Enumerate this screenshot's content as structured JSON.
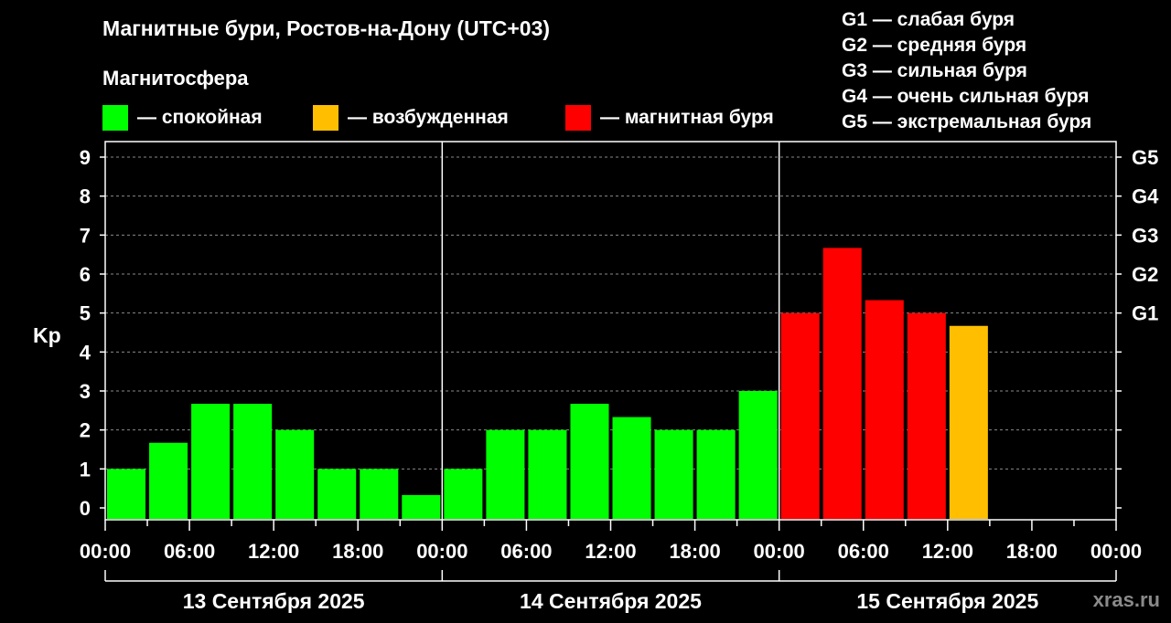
{
  "title": "Магнитные бури, Ростов-на-Дону (UTC+03)",
  "subtitle": "Магнитосфера",
  "legend": [
    {
      "label": "— спокойная",
      "color": "#00ff00"
    },
    {
      "label": "— возбужденная",
      "color": "#ffbf00"
    },
    {
      "label": "— магнитная буря",
      "color": "#ff0000"
    }
  ],
  "g_legend": [
    "G1 — слабая буря",
    "G2 — средняя буря",
    "G3 — сильная буря",
    "G4 — очень сильная буря",
    "G5 — экстремальная буря"
  ],
  "watermark": "xras.ru",
  "chart_data": {
    "type": "bar",
    "ylabel": "Kp",
    "ylim": [
      0,
      9
    ],
    "y_ticks": [
      "0",
      "1",
      "2",
      "3",
      "4",
      "5",
      "6",
      "7",
      "8",
      "9"
    ],
    "g_ticks": [
      {
        "value": 5,
        "label": "G1"
      },
      {
        "value": 6,
        "label": "G2"
      },
      {
        "value": 7,
        "label": "G3"
      },
      {
        "value": 8,
        "label": "G4"
      },
      {
        "value": 9,
        "label": "G5"
      }
    ],
    "x_tick_labels": [
      "00:00",
      "06:00",
      "12:00",
      "18:00",
      "00:00",
      "06:00",
      "12:00",
      "18:00",
      "00:00",
      "06:00",
      "12:00",
      "18:00",
      "00:00"
    ],
    "days": [
      "13 Сентября 2025",
      "14 Сентября 2025",
      "15 Сентября 2025"
    ],
    "values": [
      1,
      1.67,
      2.67,
      2.67,
      2,
      1,
      1,
      0.33,
      1,
      2,
      2,
      2.67,
      2.33,
      2,
      2,
      3,
      5,
      6.67,
      5.33,
      5,
      4.67
    ],
    "colors": [
      "#00ff00",
      "#00ff00",
      "#00ff00",
      "#00ff00",
      "#00ff00",
      "#00ff00",
      "#00ff00",
      "#00ff00",
      "#00ff00",
      "#00ff00",
      "#00ff00",
      "#00ff00",
      "#00ff00",
      "#00ff00",
      "#00ff00",
      "#00ff00",
      "#ff0000",
      "#ff0000",
      "#ff0000",
      "#ff0000",
      "#ffbf00"
    ],
    "grid": true
  }
}
